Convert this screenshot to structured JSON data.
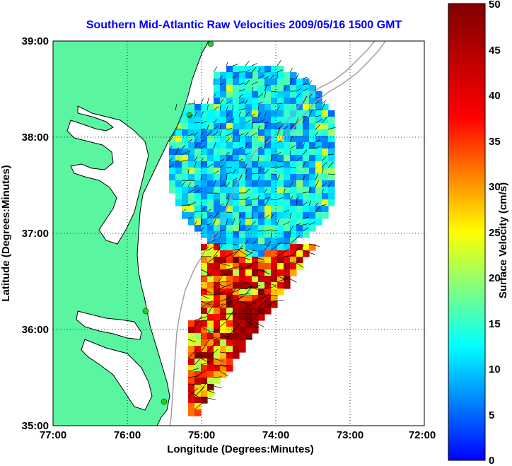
{
  "title": "Southern Mid-Atlantic Raw Velocities 2009/05/16 1500 GMT",
  "x_axis": {
    "label": "Longitude (Degrees:Minutes)",
    "ticks": [
      "77:00",
      "76:00",
      "75:00",
      "74:00",
      "73:00",
      "72:00"
    ]
  },
  "y_axis": {
    "label": "Latitude (Degrees:Minutes)",
    "ticks": [
      "39:00",
      "38:00",
      "37:00",
      "36:00",
      "35:00"
    ]
  },
  "colorbar": {
    "label": "Surface Velocity (cm/s)",
    "ticks": [
      "50",
      "45",
      "40",
      "35",
      "30",
      "25",
      "20",
      "15",
      "10",
      "5",
      "0"
    ],
    "min": 0,
    "max": 50
  },
  "map": {
    "lon_range": [
      -77,
      -72
    ],
    "lat_range": [
      35,
      39
    ],
    "land_color": "#5af5a0",
    "coastline_color": "#000000",
    "bathymetry_color": "#a0a0a0",
    "station_color": "#22cc22",
    "grid": "dotted"
  }
}
